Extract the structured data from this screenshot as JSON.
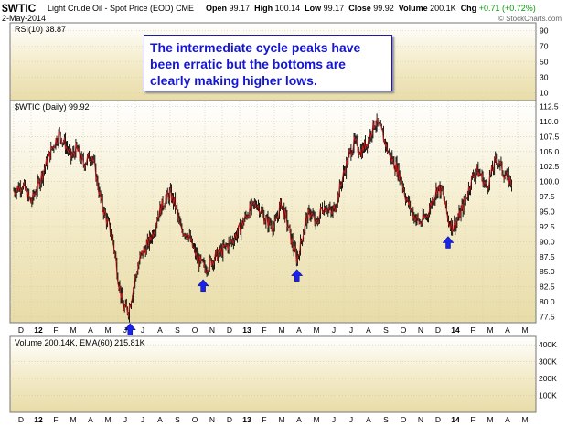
{
  "header": {
    "ticker": "$WTIC",
    "name": "Light Crude Oil - Spot Price (EOD)",
    "exchange": "CME",
    "date": "2-May-2014",
    "open_label": "Open",
    "open": "99.17",
    "high_label": "High",
    "high": "100.14",
    "low_label": "Low",
    "low": "99.17",
    "close_label": "Close",
    "close": "99.92",
    "volume_label": "Volume",
    "volume": "200.1K",
    "chg_label": "Chg",
    "chg": "+0.71 (+0.72%)",
    "brand": "© StockCharts.com",
    "up_color": "#0a9a0a"
  },
  "rsi_panel": {
    "label": "RSI(10)",
    "value": "38.87",
    "ticks": [
      "90",
      "70",
      "50",
      "30",
      "10"
    ]
  },
  "annotation": {
    "text_lines": [
      "The intermediate cycle peaks have",
      "been erratic but the bottoms are",
      "clearly making higher lows."
    ],
    "text_color": "#1515d6"
  },
  "chart_data": {
    "type": "line",
    "series_label": "$WTIC (Daily)",
    "last_value": "99.92",
    "ylim": [
      76.5,
      113.5
    ],
    "y_ticks": [
      "112.5",
      "110.0",
      "107.5",
      "105.0",
      "102.5",
      "100.0",
      "97.5",
      "95.0",
      "92.5",
      "90.0",
      "87.5",
      "85.0",
      "82.5",
      "80.0",
      "77.5"
    ],
    "x_labels": [
      "D",
      "12",
      "F",
      "M",
      "A",
      "M",
      "J",
      "J",
      "A",
      "S",
      "O",
      "N",
      "D",
      "13",
      "F",
      "M",
      "A",
      "M",
      "J",
      "J",
      "A",
      "S",
      "O",
      "N",
      "D",
      "14",
      "F",
      "M",
      "A",
      "M"
    ],
    "price_path": [
      {
        "t": 0.0,
        "v": 98.5
      },
      {
        "t": 0.5,
        "v": 99.5
      },
      {
        "t": 1.0,
        "v": 96.5
      },
      {
        "t": 1.4,
        "v": 99.5
      },
      {
        "t": 1.8,
        "v": 102.5
      },
      {
        "t": 2.2,
        "v": 105.5
      },
      {
        "t": 2.6,
        "v": 108.0
      },
      {
        "t": 3.0,
        "v": 106.0
      },
      {
        "t": 3.3,
        "v": 104.0
      },
      {
        "t": 3.6,
        "v": 105.5
      },
      {
        "t": 4.0,
        "v": 103.0
      },
      {
        "t": 4.5,
        "v": 104.5
      },
      {
        "t": 5.0,
        "v": 97.0
      },
      {
        "t": 5.3,
        "v": 94.0
      },
      {
        "t": 5.7,
        "v": 90.5
      },
      {
        "t": 6.0,
        "v": 84.0
      },
      {
        "t": 6.3,
        "v": 79.0
      },
      {
        "t": 6.6,
        "v": 78.5
      },
      {
        "t": 7.0,
        "v": 84.0
      },
      {
        "t": 7.3,
        "v": 87.5
      },
      {
        "t": 7.7,
        "v": 89.5
      },
      {
        "t": 8.0,
        "v": 91.5
      },
      {
        "t": 8.3,
        "v": 94.5
      },
      {
        "t": 8.6,
        "v": 96.5
      },
      {
        "t": 9.0,
        "v": 98.0
      },
      {
        "t": 9.3,
        "v": 96.0
      },
      {
        "t": 9.6,
        "v": 92.0
      },
      {
        "t": 10.0,
        "v": 91.5
      },
      {
        "t": 10.3,
        "v": 89.0
      },
      {
        "t": 10.6,
        "v": 87.0
      },
      {
        "t": 11.0,
        "v": 85.5
      },
      {
        "t": 11.3,
        "v": 86.5
      },
      {
        "t": 11.6,
        "v": 87.5
      },
      {
        "t": 12.0,
        "v": 88.5
      },
      {
        "t": 12.5,
        "v": 90.0
      },
      {
        "t": 13.0,
        "v": 92.0
      },
      {
        "t": 13.5,
        "v": 95.0
      },
      {
        "t": 14.0,
        "v": 96.5
      },
      {
        "t": 14.5,
        "v": 93.5
      },
      {
        "t": 15.0,
        "v": 92.5
      },
      {
        "t": 15.4,
        "v": 96.5
      },
      {
        "t": 15.7,
        "v": 93.5
      },
      {
        "t": 16.0,
        "v": 90.0
      },
      {
        "t": 16.3,
        "v": 87.0
      },
      {
        "t": 16.5,
        "v": 89.5
      },
      {
        "t": 16.8,
        "v": 93.5
      },
      {
        "t": 17.1,
        "v": 95.0
      },
      {
        "t": 17.4,
        "v": 92.5
      },
      {
        "t": 17.7,
        "v": 95.5
      },
      {
        "t": 18.0,
        "v": 96.0
      },
      {
        "t": 18.3,
        "v": 94.5
      },
      {
        "t": 18.6,
        "v": 97.0
      },
      {
        "t": 19.0,
        "v": 101.5
      },
      {
        "t": 19.3,
        "v": 104.5
      },
      {
        "t": 19.6,
        "v": 106.5
      },
      {
        "t": 20.0,
        "v": 105.0
      },
      {
        "t": 20.4,
        "v": 107.0
      },
      {
        "t": 20.8,
        "v": 110.0
      },
      {
        "t": 21.2,
        "v": 108.0
      },
      {
        "t": 21.6,
        "v": 104.5
      },
      {
        "t": 22.0,
        "v": 102.5
      },
      {
        "t": 22.3,
        "v": 100.5
      },
      {
        "t": 22.6,
        "v": 97.0
      },
      {
        "t": 23.0,
        "v": 94.5
      },
      {
        "t": 23.4,
        "v": 93.0
      },
      {
        "t": 23.8,
        "v": 94.5
      },
      {
        "t": 24.1,
        "v": 97.0
      },
      {
        "t": 24.4,
        "v": 99.0
      },
      {
        "t": 24.7,
        "v": 98.0
      },
      {
        "t": 25.0,
        "v": 93.5
      },
      {
        "t": 25.3,
        "v": 92.5
      },
      {
        "t": 25.6,
        "v": 94.0
      },
      {
        "t": 26.0,
        "v": 97.0
      },
      {
        "t": 26.3,
        "v": 100.0
      },
      {
        "t": 26.6,
        "v": 102.0
      },
      {
        "t": 26.9,
        "v": 101.0
      },
      {
        "t": 27.2,
        "v": 99.0
      },
      {
        "t": 27.5,
        "v": 101.5
      },
      {
        "t": 27.8,
        "v": 104.0
      },
      {
        "t": 28.1,
        "v": 102.0
      },
      {
        "t": 28.4,
        "v": 100.5
      },
      {
        "t": 28.7,
        "v": 99.92
      }
    ],
    "cycle_lows": [
      {
        "t": 6.7,
        "v": 77.3
      },
      {
        "t": 10.9,
        "v": 84.6
      },
      {
        "t": 16.3,
        "v": 86.3
      },
      {
        "t": 25.0,
        "v": 91.8
      }
    ],
    "arrow_color": "#1a22e6",
    "line_color": "#d01818",
    "bar_color": "#000000"
  },
  "volume_panel": {
    "label": "Volume",
    "value": "200.14K",
    "ema_label": "EMA(60)",
    "ema_value": "215.81K",
    "ticks": [
      "400K",
      "300K",
      "200K",
      "100K"
    ]
  }
}
